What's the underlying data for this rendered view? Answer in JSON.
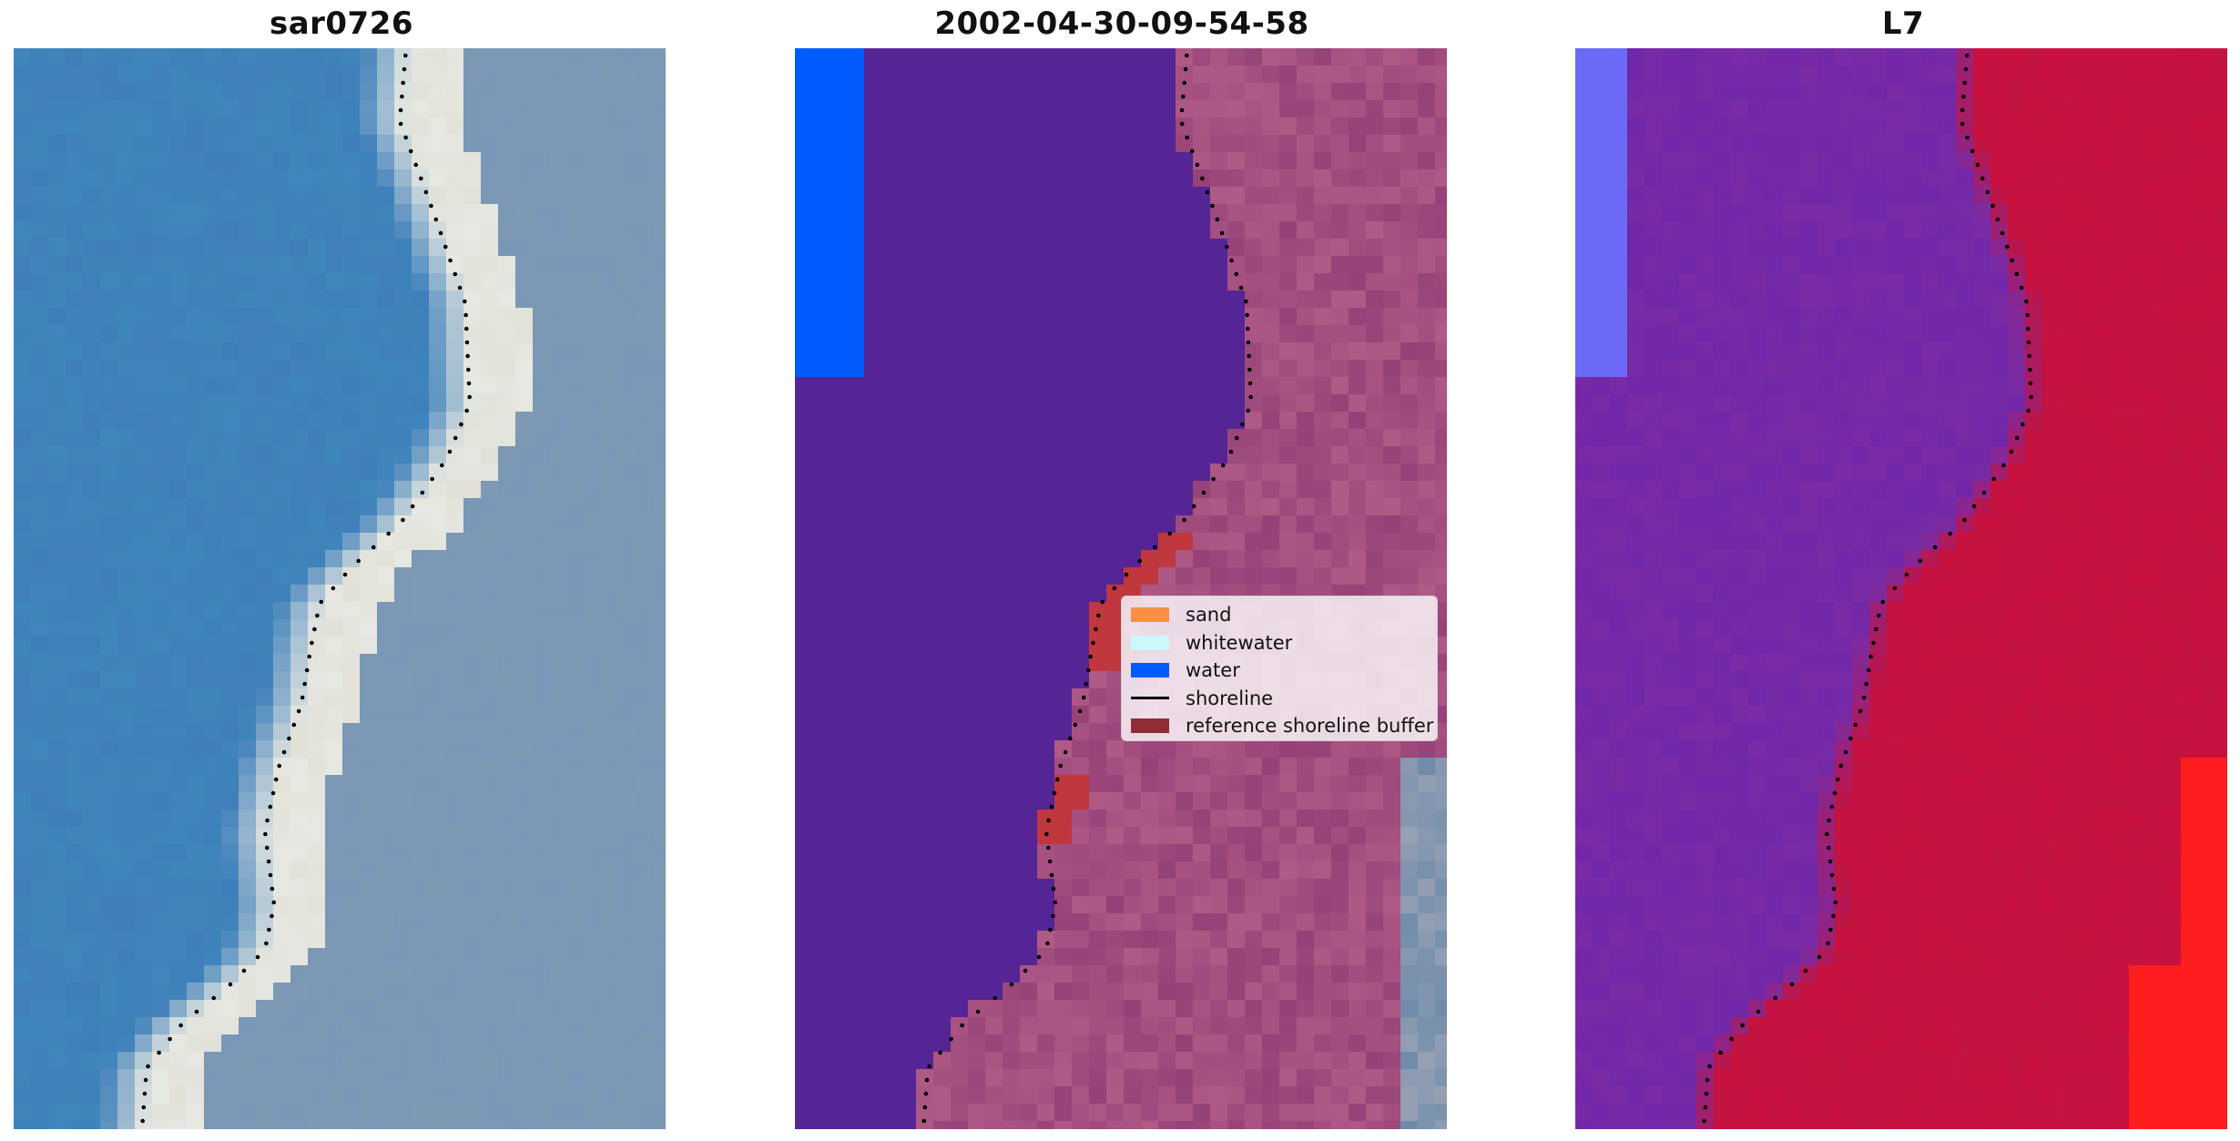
{
  "panels": [
    {
      "title": "sar0726",
      "kind": "rgb"
    },
    {
      "title": "2002-04-30-09-54-58",
      "kind": "classified"
    },
    {
      "title": "L7",
      "kind": "index"
    }
  ],
  "legend": {
    "items": [
      {
        "label": "sand",
        "color": "#f99043",
        "type": "patch"
      },
      {
        "label": "whitewater",
        "color": "#cbf9fa",
        "type": "patch"
      },
      {
        "label": "water",
        "color": "#005cff",
        "type": "patch"
      },
      {
        "label": "shoreline",
        "color": "#000000",
        "type": "line"
      },
      {
        "label": "reference shoreline buffer",
        "color": "#902c34",
        "type": "patch"
      }
    ]
  },
  "colors": {
    "water_rgb": "#3e7fba",
    "land_rgb": "#7d99b3",
    "whitewater_rgb": "#e6e8e2",
    "class_water_dark": "#552596",
    "class_water_blue": "#005cff",
    "class_sand": "#b05a86",
    "class_buffer_red": "#c0373e",
    "index_water": "#7a2ca6",
    "index_land": "#c3133f",
    "index_bright": "#ff1e1e",
    "index_blue": "#6a6af6"
  }
}
